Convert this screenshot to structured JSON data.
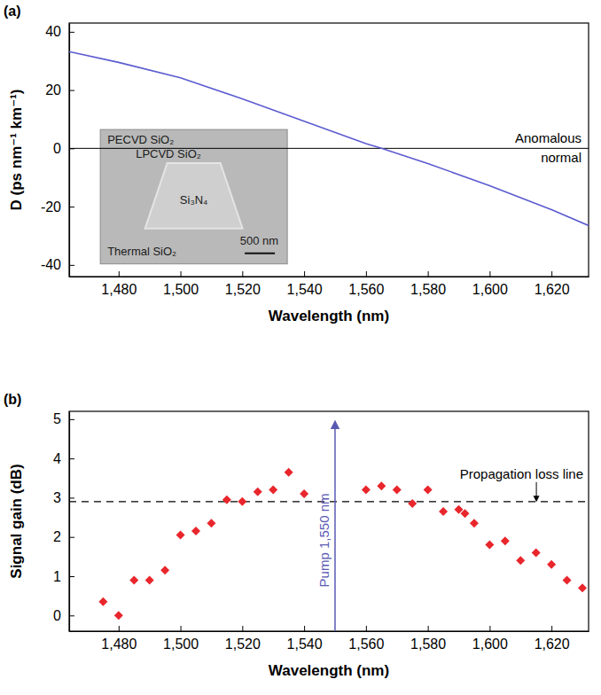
{
  "chart_data": [
    {
      "type": "line",
      "panel_label": "(a)",
      "x_label": "Wavelength (nm)",
      "y_label": "D (ps nm⁻¹ km⁻¹)",
      "x": [
        1464,
        1480,
        1500,
        1520,
        1540,
        1560,
        1565,
        1580,
        1600,
        1620,
        1632
      ],
      "values": [
        33.2,
        29.5,
        24.2,
        17.0,
        9.3,
        1.6,
        0,
        -5.2,
        -12.8,
        -21.0,
        -26.5
      ],
      "color": "#5b5bd0",
      "xlim": [
        1464,
        1632
      ],
      "ylim": [
        -44,
        43
      ],
      "xticks": [
        {
          "value": 1480,
          "label": "1,480"
        },
        {
          "value": 1500,
          "label": "1,500"
        },
        {
          "value": 1520,
          "label": "1,520"
        },
        {
          "value": 1540,
          "label": "1,540"
        },
        {
          "value": 1560,
          "label": "1,560"
        },
        {
          "value": 1580,
          "label": "1,580"
        },
        {
          "value": 1600,
          "label": "1,600"
        },
        {
          "value": 1620,
          "label": "1,620"
        }
      ],
      "yticks": [
        -40,
        -20,
        0,
        20,
        40
      ],
      "grid": false,
      "reference_line": {
        "value": 0
      },
      "annotations": [
        "Anomalous",
        "normal"
      ],
      "inset_labels": [
        "PECVD SiO₂",
        "LPCVD SiO₂",
        "Si₃N₄",
        "Thermal SiO₂",
        "500 nm"
      ]
    },
    {
      "type": "scatter",
      "panel_label": "(b)",
      "x_label": "Wavelength (nm)",
      "y_label": "Signal gain (dB)",
      "x": [
        1475,
        1480,
        1485,
        1490,
        1495,
        1500,
        1505,
        1510,
        1515,
        1520,
        1525,
        1530,
        1535,
        1540,
        1560,
        1565,
        1570,
        1575,
        1580,
        1585,
        1590,
        1592,
        1595,
        1600,
        1605,
        1610,
        1615,
        1620,
        1625,
        1630
      ],
      "values": [
        0.35,
        0.0,
        0.9,
        0.9,
        1.15,
        2.05,
        2.15,
        2.35,
        2.95,
        2.9,
        3.15,
        3.2,
        3.65,
        3.1,
        3.2,
        3.3,
        3.2,
        2.85,
        3.2,
        2.65,
        2.7,
        2.6,
        2.35,
        1.8,
        1.9,
        1.4,
        1.6,
        1.3,
        0.9,
        0.7
      ],
      "color": "#e8262c",
      "marker": "diamond",
      "xlim": [
        1464,
        1632
      ],
      "ylim": [
        -0.4,
        5.2
      ],
      "xticks": [
        {
          "value": 1480,
          "label": "1,480"
        },
        {
          "value": 1500,
          "label": "1,500"
        },
        {
          "value": 1520,
          "label": "1,520"
        },
        {
          "value": 1540,
          "label": "1,540"
        },
        {
          "value": 1560,
          "label": "1,560"
        },
        {
          "value": 1580,
          "label": "1,580"
        },
        {
          "value": 1600,
          "label": "1,600"
        },
        {
          "value": 1620,
          "label": "1,620"
        }
      ],
      "yticks": [
        0,
        1,
        2,
        3,
        4,
        5
      ],
      "grid": false,
      "reference_line": {
        "value": 2.9,
        "label": "Propagation loss line",
        "line_style": "dashed"
      },
      "pump": {
        "value": 1550,
        "label": "Pump 1,550 nm",
        "color": "#5a5ab4"
      }
    }
  ]
}
